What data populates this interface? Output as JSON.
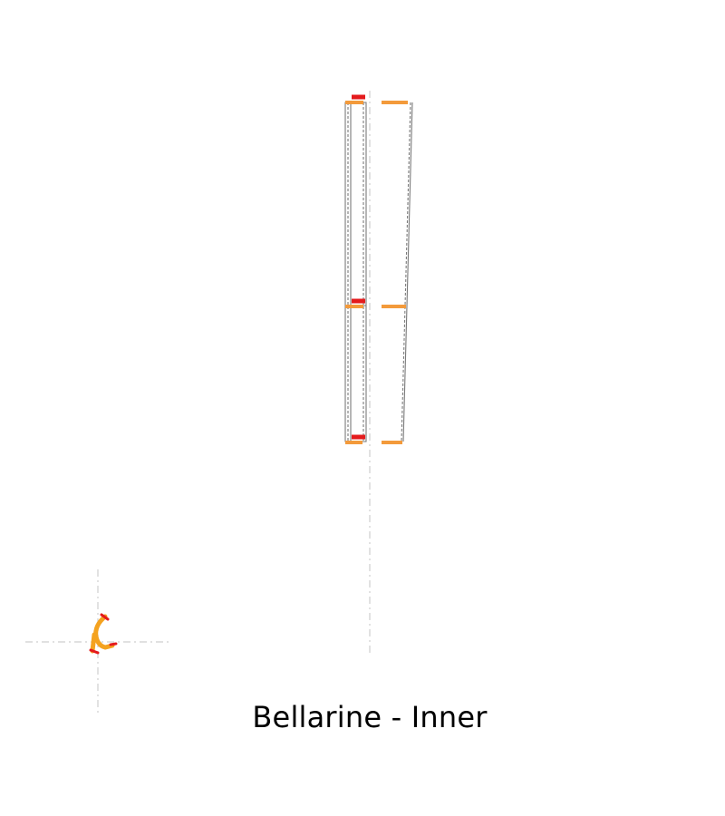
{
  "caption": "Bellarine - Inner",
  "colors": {
    "background": "#ffffff",
    "centerline": "#cfcfcf",
    "outline": "#7a7a7a",
    "segment_orange": "#f39a3b",
    "segment_red": "#e41a1c",
    "compass_orange": "#f4a21f",
    "caption_text": "#000000"
  }
}
